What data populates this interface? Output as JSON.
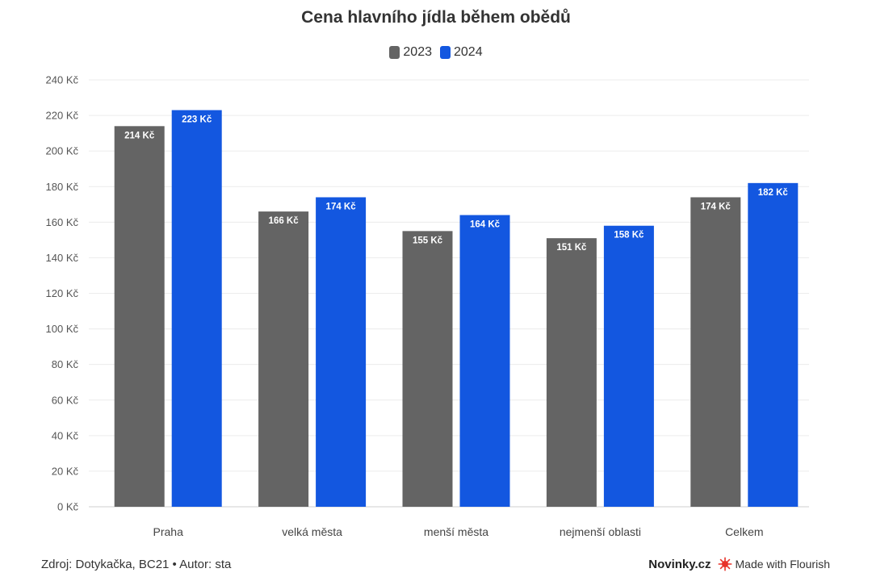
{
  "chart_data": {
    "type": "bar",
    "title": "Cena hlavního jídla během obědů",
    "categories": [
      "Praha",
      "velká města",
      "menší města",
      "nejmenší oblasti",
      "Celkem"
    ],
    "series": [
      {
        "name": "2023",
        "color": "#646464",
        "values": [
          214,
          166,
          155,
          151,
          174
        ],
        "labels": [
          "214 Kč",
          "166 Kč",
          "155 Kč",
          "151 Kč",
          "174 Kč"
        ]
      },
      {
        "name": "2024",
        "color": "#1357e0",
        "values": [
          223,
          174,
          164,
          158,
          182
        ],
        "labels": [
          "223 Kč",
          "174 Kč",
          "164 Kč",
          "158 Kč",
          "182 Kč"
        ]
      }
    ],
    "ylim": [
      0,
      240
    ],
    "yticks": [
      0,
      20,
      40,
      60,
      80,
      100,
      120,
      140,
      160,
      180,
      200,
      220,
      240
    ],
    "ytick_labels": [
      "0 Kč",
      "20 Kč",
      "40 Kč",
      "60 Kč",
      "80 Kč",
      "100 Kč",
      "120 Kč",
      "140 Kč",
      "160 Kč",
      "180 Kč",
      "200 Kč",
      "220 Kč",
      "240 Kč"
    ],
    "grid": true,
    "legend": "top-center"
  },
  "footer": {
    "source": "Zdroj: Dotykačka, BC21 • Autor: sta",
    "brand": "Novinky.cz",
    "flourish": "Made with Flourish",
    "flourish_icon": "flourish-burst-icon",
    "flourish_icon_color": "#e8332a"
  }
}
